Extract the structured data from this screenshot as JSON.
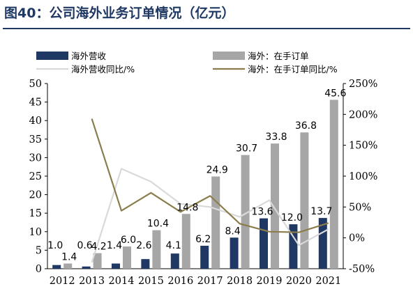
{
  "title": "图40：公司海外业务订单情况（亿元）",
  "chart_data": {
    "type": "bar",
    "categories": [
      "2012",
      "2013",
      "2014",
      "2015",
      "2016",
      "2017",
      "2018",
      "2019",
      "2020",
      "2021"
    ],
    "series": [
      {
        "name": "海外营收",
        "kind": "bar",
        "axis": "left",
        "color": "#1f3864",
        "values": [
          1.0,
          0.6,
          1.4,
          2.6,
          4.1,
          6.2,
          8.4,
          13.6,
          12.0,
          13.7
        ],
        "labels": [
          "1.0",
          "0.6",
          "1.4",
          "2.6",
          "4.1",
          "6.2",
          "8.4",
          "13.6",
          "12.0",
          "13.7"
        ]
      },
      {
        "name": "海外：在手订单",
        "kind": "bar",
        "axis": "left",
        "color": "#a6a6a6",
        "values": [
          1.4,
          4.2,
          6.0,
          10.4,
          14.8,
          24.9,
          30.7,
          33.8,
          36.8,
          45.6
        ],
        "labels": [
          "1.4",
          "4.2",
          "6.0",
          "10.4",
          "14.8",
          "24.9",
          "30.7",
          "33.8",
          "36.8",
          "45.6"
        ]
      },
      {
        "name": "海外营收同比/%",
        "kind": "line",
        "axis": "right",
        "color": "#d9d9d9",
        "values": [
          null,
          -40,
          112,
          91,
          55,
          50,
          34,
          61,
          -12,
          14
        ]
      },
      {
        "name": "海外：在手订单同比/%",
        "kind": "line",
        "axis": "right",
        "color": "#8b7d4b",
        "values": [
          null,
          193,
          44,
          73,
          42,
          68,
          23,
          10,
          9,
          24
        ]
      }
    ],
    "ylim_left": [
      0,
      50
    ],
    "yticks_left": [
      0,
      5,
      10,
      15,
      20,
      25,
      30,
      35,
      40,
      45,
      50
    ],
    "ylim_right": [
      -50,
      250
    ],
    "yticks_right": [
      "-50%",
      "0%",
      "50%",
      "100%",
      "150%",
      "200%",
      "250%"
    ],
    "legend": "top"
  }
}
